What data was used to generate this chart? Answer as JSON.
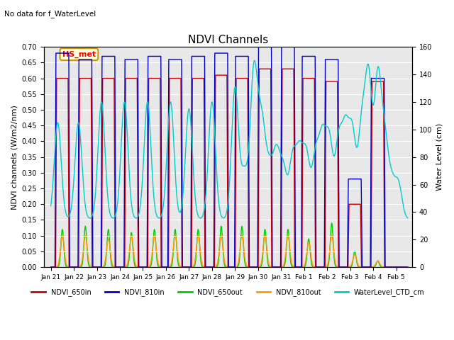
{
  "title": "NDVI Channels",
  "subtitle": "No data for f_WaterLevel",
  "ylabel_left": "NDVI channels (W/m2/nm)",
  "ylabel_right": "Water Level (cm)",
  "ylim_left": [
    0.0,
    0.7
  ],
  "ylim_right": [
    0,
    160
  ],
  "yticks_left": [
    0.0,
    0.05,
    0.1,
    0.15,
    0.2,
    0.25,
    0.3,
    0.35,
    0.4,
    0.45,
    0.5,
    0.55,
    0.6,
    0.65,
    0.7
  ],
  "yticks_right": [
    0,
    20,
    40,
    60,
    80,
    100,
    120,
    140,
    160
  ],
  "legend_label": "HS_met",
  "legend_items": [
    {
      "label": "NDVI_650in",
      "color": "#cc0000"
    },
    {
      "label": "NDVI_810in",
      "color": "#0000cc"
    },
    {
      "label": "NDVI_650out",
      "color": "#00cc00"
    },
    {
      "label": "NDVI_810out",
      "color": "#ff9900"
    },
    {
      "label": "WaterLevel_CTD_cm",
      "color": "#00cccc"
    }
  ],
  "colors": {
    "ndvi_650in": "#cc0000",
    "ndvi_810in": "#0000cc",
    "ndvi_650out": "#00cc00",
    "ndvi_810out": "#ff9900",
    "water": "#00cccc"
  },
  "background": "#e8e8e8",
  "xtick_labels": [
    "Jan 21",
    "Jan 22",
    "Jan 23",
    "Jan 24",
    "Jan 25",
    "Jan 26",
    "Jan 27",
    "Jan 28",
    "Jan 29",
    "Jan 30",
    "Jan 31",
    "Feb 1",
    "Feb 2",
    "Feb 3",
    "Feb 4",
    "Feb 5"
  ]
}
